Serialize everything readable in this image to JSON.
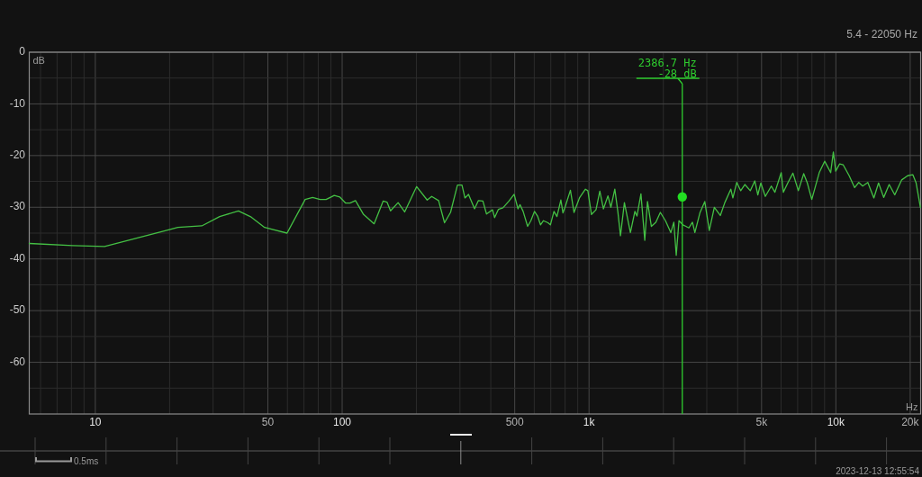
{
  "chart_data": {
    "type": "line",
    "subtitle": "5.4 - 22050 Hz",
    "xlabel": "Hz",
    "ylabel": "dB",
    "log": "x",
    "grid": true,
    "xlim": [
      5.4,
      22050
    ],
    "ylim": [
      -70,
      0
    ],
    "xticks": [
      {
        "value": 6,
        "label": null
      },
      {
        "value": 7,
        "label": null
      },
      {
        "value": 8,
        "label": null
      },
      {
        "value": 9,
        "label": null
      },
      10,
      {
        "value": 20,
        "label": null
      },
      {
        "value": 30,
        "label": null
      },
      {
        "value": 40,
        "label": null
      },
      50,
      {
        "value": 60,
        "label": null
      },
      {
        "value": 70,
        "label": null
      },
      {
        "value": 80,
        "label": null
      },
      {
        "value": 90,
        "label": null
      },
      100,
      {
        "value": 200,
        "label": null
      },
      {
        "value": 300,
        "label": null
      },
      {
        "value": 400,
        "label": null
      },
      500,
      {
        "value": 600,
        "label": null
      },
      {
        "value": 700,
        "label": null
      },
      {
        "value": 800,
        "label": null
      },
      {
        "value": 900,
        "label": null
      },
      {
        "value": 1000,
        "label": "1k"
      },
      {
        "value": 2000,
        "label": null
      },
      {
        "value": 3000,
        "label": null
      },
      {
        "value": 4000,
        "label": null
      },
      {
        "value": 5000,
        "label": "5k"
      },
      {
        "value": 6000,
        "label": null
      },
      {
        "value": 7000,
        "label": null
      },
      {
        "value": 8000,
        "label": null
      },
      {
        "value": 9000,
        "label": null
      },
      {
        "value": 10000,
        "label": "10k"
      },
      {
        "value": 20000,
        "label": "20k"
      }
    ],
    "yticks": [
      0,
      {
        "value": -5,
        "label": null
      },
      -10,
      {
        "value": -15,
        "label": null
      },
      -20,
      {
        "value": -25,
        "label": null
      },
      -30,
      {
        "value": -35,
        "label": null
      },
      -40,
      {
        "value": -45,
        "label": null
      },
      -50,
      {
        "value": -55,
        "label": null
      },
      -60,
      {
        "value": -65,
        "label": null
      }
    ],
    "x": [
      5.4,
      8.1,
      10.9,
      21.6,
      27,
      31.9,
      38,
      42.8,
      48.5,
      59.8,
      70.8,
      75.9,
      81.4,
      86.1,
      92.9,
      97.7,
      103.3,
      107.6,
      113.2,
      122.1,
      134.7,
      146.5,
      151.9,
      157,
      168.5,
      179.1,
      200.3,
      221,
      230.4,
      245.8,
      259.8,
      274.8,
      293.1,
      305.7,
      314.3,
      324.9,
      343.8,
      356.4,
      371.6,
      384.3,
      406.5,
      414.5,
      429.7,
      448.1,
      474,
      497.2,
      515.5,
      525.5,
      540.8,
      564,
      581.3,
      601.2,
      618.6,
      636,
      653.8,
      681.8,
      697.4,
      721.1,
      741.3,
      769.1,
      784.2,
      799.4,
      840.7,
      869.5,
      914.4,
      967,
      989.2,
      1023,
      1067,
      1106,
      1144,
      1193,
      1226,
      1272,
      1308,
      1341,
      1391,
      1471,
      1534,
      1564,
      1623,
      1682,
      1725,
      1789,
      1865,
      1945,
      2040,
      2145,
      2206,
      2256,
      2314,
      2399,
      2469,
      2538,
      2624,
      2684,
      2813,
      2944,
      3070,
      3218,
      3403,
      3549,
      3753,
      3826,
      3967,
      4116,
      4278,
      4500,
      4693,
      4829,
      4964,
      5177,
      5476,
      5663,
      6006,
      6124,
      6387,
      6698,
      7045,
      7408,
      7661,
      7987,
      8563,
      9007,
      9314,
      9526,
      9768,
      9984,
      10360,
      10710,
      11320,
      11910,
      12380,
      12840,
      13470,
      14250,
      14890,
      15620,
      16440,
      17320,
      18480,
      19530,
      20490,
      21140,
      22000
    ],
    "series": [
      {
        "color": "#44c044",
        "values": [
          -37,
          -37.4,
          -37.6,
          -33.9,
          -33.6,
          -31.8,
          -30.7,
          -31.9,
          -33.9,
          -35,
          -28.5,
          -28.1,
          -28.5,
          -28.5,
          -27.7,
          -28,
          -29.2,
          -29.2,
          -28.7,
          -31.4,
          -33.2,
          -28.8,
          -29,
          -30.7,
          -29.1,
          -30.9,
          -26,
          -28.6,
          -27.9,
          -28.7,
          -33,
          -31,
          -25.7,
          -25.7,
          -28.2,
          -27.5,
          -30.3,
          -28.7,
          -28.8,
          -31.3,
          -30.5,
          -32,
          -30.4,
          -30.1,
          -28.8,
          -27.5,
          -30.3,
          -29.5,
          -30.8,
          -33.7,
          -32.6,
          -30.8,
          -31.7,
          -33.4,
          -32.6,
          -33,
          -33.4,
          -30.8,
          -31.8,
          -28.6,
          -31.1,
          -30,
          -26.7,
          -31,
          -28.2,
          -26.5,
          -26.8,
          -31.4,
          -30.5,
          -26.9,
          -30.3,
          -27.8,
          -30,
          -26.5,
          -30.8,
          -35.5,
          -29.1,
          -34.9,
          -30.8,
          -31.7,
          -27.4,
          -36.4,
          -28.9,
          -33.7,
          -32.9,
          -31,
          -32.6,
          -34.9,
          -32.9,
          -39.3,
          -32.6,
          -33.4,
          -33.7,
          -34,
          -32.9,
          -34.9,
          -31.1,
          -28.9,
          -34.5,
          -30,
          -31.6,
          -29.1,
          -26.5,
          -28.2,
          -25.2,
          -26.8,
          -25.6,
          -26.8,
          -24.9,
          -27.6,
          -25.3,
          -27.9,
          -25.9,
          -27.1,
          -23.3,
          -27.1,
          -25.3,
          -23.4,
          -26.8,
          -23.5,
          -25.3,
          -28.5,
          -23.3,
          -21.1,
          -22.4,
          -23.3,
          -19.3,
          -23,
          -21.6,
          -21.8,
          -23.9,
          -26.2,
          -25.2,
          -25.9,
          -25.2,
          -28.2,
          -25.3,
          -28.1,
          -25.6,
          -27.6,
          -24.7,
          -23.9,
          -23.7,
          -25.3,
          -30
        ]
      },
      {
        "type": "scatter",
        "x": [
          2386.7
        ],
        "values": [
          -28
        ],
        "color": "#22dd22",
        "marker": "circle"
      }
    ],
    "ref_lines": [
      {
        "axis": "x",
        "value": 2386.7,
        "label": "2386.7 Hz\n-28 dB",
        "color": "#2ecc2e"
      }
    ],
    "annotations": [
      "0.5ms",
      "2023-12-13 12:55:54"
    ]
  }
}
